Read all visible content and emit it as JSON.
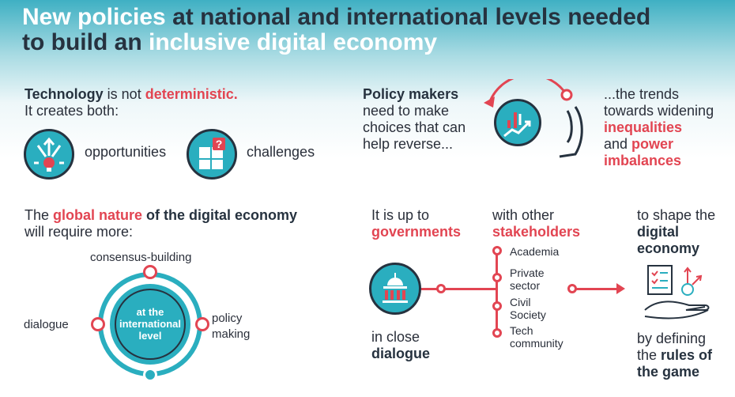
{
  "title": {
    "part1": "New policies ",
    "part2": "at national and international levels needed",
    "part3": "to build an ",
    "part4": "inclusive digital economy"
  },
  "tech": {
    "technology": "Technology",
    "is_not": " is not ",
    "deterministic": "deterministic.",
    "creates_both": "It creates both:",
    "opportunities": "opportunities",
    "challenges": "challenges"
  },
  "policy": {
    "makers": "Policy makers",
    "line2": "need to make",
    "line3": "choices that can",
    "line4": "help reverse...",
    "trends1": "...the trends",
    "trends2": "towards widening",
    "inequalities": "inequalities",
    "and": "and ",
    "power": "power",
    "imbalances": "imbalances"
  },
  "global": {
    "the": "The ",
    "global_nature": "global nature",
    "of_digital": " of the digital economy",
    "line2": "will require more:",
    "consensus": "consensus-building",
    "dialogue": "dialogue",
    "policy1": "policy",
    "policy2": "making",
    "center1": "at the",
    "center2": "international",
    "center3": "level"
  },
  "gov": {
    "up_to": "It is up to",
    "governments": "governments",
    "with_other": "with other",
    "stakeholders": "stakeholders",
    "close": "in close",
    "dialogue": "dialogue",
    "list": [
      "Academia",
      "Private\nsector",
      "Civil\nSociety",
      "Tech\ncommunity"
    ],
    "shape1": "to shape the",
    "shape2": "digital",
    "shape3": "economy",
    "by1": "by defining",
    "by2": "the ",
    "by3": "rules of",
    "by4": "the game"
  }
}
